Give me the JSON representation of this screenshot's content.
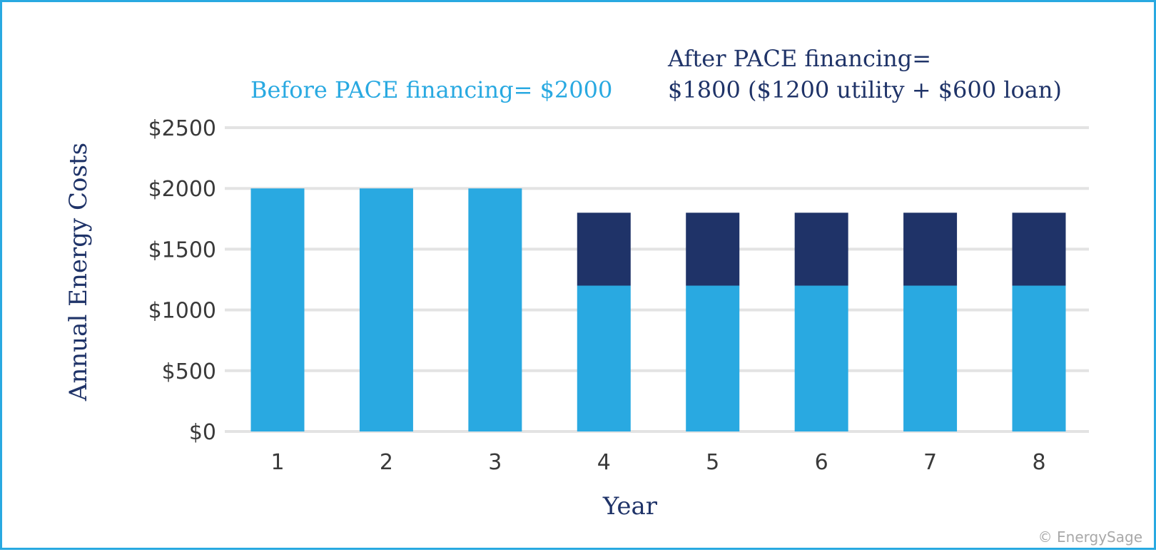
{
  "chart_data": {
    "type": "bar",
    "stacked": true,
    "categories": [
      "1",
      "2",
      "3",
      "4",
      "5",
      "6",
      "7",
      "8"
    ],
    "series": [
      {
        "name": "",
        "color": "#29a9e1",
        "values": [
          2000,
          2000,
          2000,
          1200,
          1200,
          1200,
          1200,
          1200
        ]
      },
      {
        "name": "",
        "color": "#1f3368",
        "values": [
          0,
          0,
          0,
          600,
          600,
          600,
          600,
          600
        ]
      }
    ],
    "xlabel": "Year",
    "ylabel": "Annual Energy Costs",
    "ylim": [
      0,
      2500
    ],
    "yticks": [
      0,
      500,
      1000,
      1500,
      2000,
      2500
    ],
    "ytick_labels": [
      "$0",
      "$500",
      "$1000",
      "$1500",
      "$2000",
      "$2500"
    ],
    "grid": true,
    "annotations": {
      "before": {
        "text": "Before PACE financing= $2000",
        "color": "#29a9e1"
      },
      "after_line1": {
        "text": "After PACE financing=",
        "color": "#1f3368"
      },
      "after_line2": {
        "text": "$1800 ($1200 utility + $600 loan)",
        "color": "#1f3368"
      }
    }
  },
  "credit": "© EnergySage"
}
